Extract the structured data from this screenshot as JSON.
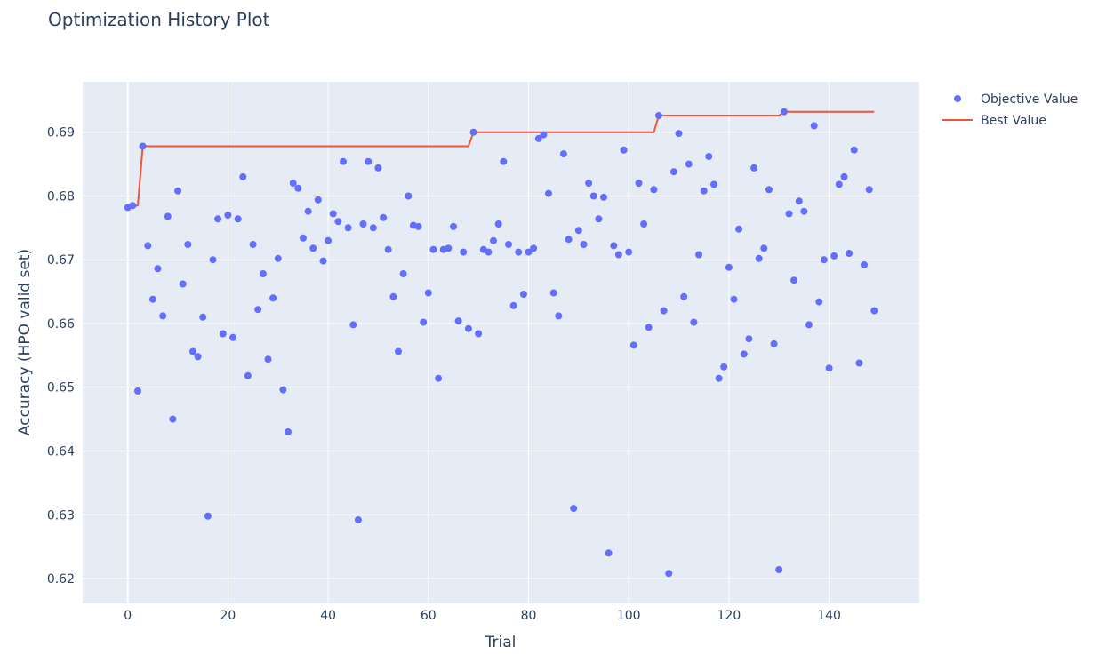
{
  "chart_data": {
    "type": "scatter",
    "title": "Optimization History Plot",
    "xlabel": "Trial",
    "ylabel": "Accuracy (HPO valid set)",
    "xlim": [
      -9,
      158
    ],
    "ylim": [
      0.6161,
      0.6979
    ],
    "xticks": [
      0,
      20,
      40,
      60,
      80,
      100,
      120,
      140
    ],
    "yticks": [
      0.62,
      0.63,
      0.64,
      0.65,
      0.66,
      0.67,
      0.68,
      0.69
    ],
    "grid": true,
    "legend_position": "top-right",
    "colors": {
      "objective": "#636efa",
      "best": "#ef553b",
      "plot_bg": "#e5ecf6",
      "grid": "#ffffff"
    },
    "series": [
      {
        "name": "Objective Value",
        "type": "scatter",
        "x": [
          0,
          1,
          2,
          3,
          4,
          5,
          6,
          7,
          8,
          9,
          10,
          11,
          12,
          13,
          14,
          15,
          16,
          17,
          18,
          19,
          20,
          21,
          22,
          23,
          24,
          25,
          26,
          27,
          28,
          29,
          30,
          31,
          32,
          33,
          34,
          35,
          36,
          37,
          38,
          39,
          40,
          41,
          42,
          43,
          44,
          45,
          46,
          47,
          48,
          49,
          50,
          51,
          52,
          53,
          54,
          55,
          56,
          57,
          58,
          59,
          60,
          61,
          62,
          63,
          64,
          65,
          66,
          67,
          68,
          69,
          70,
          71,
          72,
          73,
          74,
          75,
          76,
          77,
          78,
          79,
          80,
          81,
          82,
          83,
          84,
          85,
          86,
          87,
          88,
          89,
          90,
          91,
          92,
          93,
          94,
          95,
          96,
          97,
          98,
          99,
          100,
          101,
          102,
          103,
          104,
          105,
          106,
          107,
          108,
          109,
          110,
          111,
          112,
          113,
          114,
          115,
          116,
          117,
          118,
          119,
          120,
          121,
          122,
          123,
          124,
          125,
          126,
          127,
          128,
          129,
          130,
          131,
          132,
          133,
          134,
          135,
          136,
          137,
          138,
          139,
          140,
          141,
          142,
          143,
          144,
          145,
          146,
          147,
          148,
          149
        ],
        "y": [
          0.6782,
          0.6785,
          0.6494,
          0.6878,
          0.6722,
          0.6638,
          0.6686,
          0.6612,
          0.6768,
          0.645,
          0.6808,
          0.6662,
          0.6724,
          0.6556,
          0.6548,
          0.661,
          0.6298,
          0.67,
          0.6764,
          0.6584,
          0.677,
          0.6578,
          0.6764,
          0.683,
          0.6518,
          0.6724,
          0.6622,
          0.6678,
          0.6544,
          0.664,
          0.6702,
          0.6496,
          0.643,
          0.682,
          0.6812,
          0.6734,
          0.6776,
          0.6718,
          0.6794,
          0.6698,
          0.673,
          0.6772,
          0.676,
          0.6854,
          0.675,
          0.6598,
          0.6292,
          0.6756,
          0.6854,
          0.675,
          0.6844,
          0.6766,
          0.6716,
          0.6642,
          0.6556,
          0.6678,
          0.68,
          0.6754,
          0.6752,
          0.6602,
          0.6648,
          0.6716,
          0.6514,
          0.6716,
          0.6718,
          0.6752,
          0.6604,
          0.6712,
          0.6592,
          0.69,
          0.6584,
          0.6716,
          0.6712,
          0.673,
          0.6756,
          0.6854,
          0.6724,
          0.6628,
          0.6712,
          0.6646,
          0.6712,
          0.6718,
          0.689,
          0.6896,
          0.6804,
          0.6648,
          0.6612,
          0.6866,
          0.6732,
          0.631,
          0.6746,
          0.6724,
          0.682,
          0.68,
          0.6764,
          0.6798,
          0.624,
          0.6722,
          0.6708,
          0.6872,
          0.6712,
          0.6566,
          0.682,
          0.6756,
          0.6594,
          0.681,
          0.6926,
          0.662,
          0.6208,
          0.6838,
          0.6898,
          0.6642,
          0.685,
          0.6602,
          0.6708,
          0.6808,
          0.6862,
          0.6818,
          0.6514,
          0.6532,
          0.6688,
          0.6638,
          0.6748,
          0.6552,
          0.6576,
          0.6844,
          0.6702,
          0.6718,
          0.681,
          0.6568,
          0.6214,
          0.6932,
          0.6772,
          0.6668,
          0.6792,
          0.6776,
          0.6598,
          0.691,
          0.6634,
          0.67,
          0.653,
          0.6706,
          0.6818,
          0.683,
          0.671,
          0.6872,
          0.6538,
          0.6692,
          0.681,
          0.662
        ]
      },
      {
        "name": "Best Value",
        "type": "line",
        "x": [
          0,
          1,
          2,
          3,
          68,
          69,
          105,
          106,
          130,
          131,
          149
        ],
        "y": [
          0.6782,
          0.6785,
          0.6785,
          0.6878,
          0.6878,
          0.69,
          0.69,
          0.6926,
          0.6926,
          0.6932,
          0.6932
        ]
      }
    ]
  }
}
